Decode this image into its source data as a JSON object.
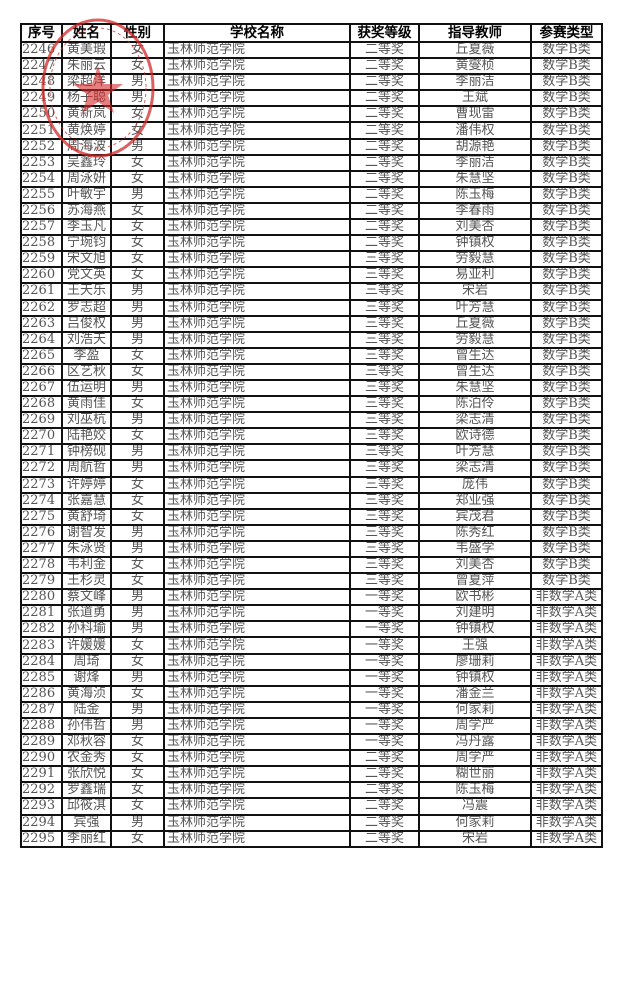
{
  "table": {
    "headers": [
      "序号",
      "姓名",
      "性别",
      "学校名称",
      "获奖等级",
      "指导教师",
      "参赛类型"
    ],
    "rows": [
      [
        "2246",
        "黄美瑕",
        "女",
        "玉林师范学院",
        "二等奖",
        "丘夏薇",
        "数学B类"
      ],
      [
        "2247",
        "朱丽云",
        "女",
        "玉林师范学院",
        "二等奖",
        "黄燮桢",
        "数学B类"
      ],
      [
        "2248",
        "梁超洋",
        "男",
        "玉林师范学院",
        "二等奖",
        "李丽洁",
        "数学B类"
      ],
      [
        "2249",
        "杨子聪",
        "男",
        "玉林师范学院",
        "二等奖",
        "王斌",
        "数学B类"
      ],
      [
        "2250",
        "黄新岚",
        "女",
        "玉林师范学院",
        "二等奖",
        "曹现雷",
        "数学B类"
      ],
      [
        "2251",
        "黄焕婷",
        "女",
        "玉林师范学院",
        "二等奖",
        "潘伟权",
        "数学B类"
      ],
      [
        "2252",
        "周海波",
        "男",
        "玉林师范学院",
        "二等奖",
        "胡源艳",
        "数学B类"
      ],
      [
        "2253",
        "吴鑫玲",
        "女",
        "玉林师范学院",
        "二等奖",
        "李丽洁",
        "数学B类"
      ],
      [
        "2254",
        "周泳妍",
        "女",
        "玉林师范学院",
        "二等奖",
        "朱慧坚",
        "数学B类"
      ],
      [
        "2255",
        "叶敏宇",
        "男",
        "玉林师范学院",
        "二等奖",
        "陈玉梅",
        "数学B类"
      ],
      [
        "2256",
        "苏海燕",
        "女",
        "玉林师范学院",
        "二等奖",
        "李春雨",
        "数学B类"
      ],
      [
        "2257",
        "李玉凡",
        "女",
        "玉林师范学院",
        "二等奖",
        "刘美杏",
        "数学B类"
      ],
      [
        "2258",
        "宁琬钧",
        "女",
        "玉林师范学院",
        "二等奖",
        "钟镇权",
        "数学B类"
      ],
      [
        "2259",
        "宋文旭",
        "女",
        "玉林师范学院",
        "三等奖",
        "劳毅慧",
        "数学B类"
      ],
      [
        "2260",
        "党文英",
        "女",
        "玉林师范学院",
        "三等奖",
        "易亚利",
        "数学B类"
      ],
      [
        "2261",
        "王天乐",
        "男",
        "玉林师范学院",
        "三等奖",
        "宋岩",
        "数学B类"
      ],
      [
        "2262",
        "罗志超",
        "男",
        "玉林师范学院",
        "三等奖",
        "叶芳慧",
        "数学B类"
      ],
      [
        "2263",
        "吕俊权",
        "男",
        "玉林师范学院",
        "三等奖",
        "丘夏薇",
        "数学B类"
      ],
      [
        "2264",
        "刘浩天",
        "男",
        "玉林师范学院",
        "三等奖",
        "劳毅慧",
        "数学B类"
      ],
      [
        "2265",
        "李盈",
        "女",
        "玉林师范学院",
        "三等奖",
        "曾生达",
        "数学B类"
      ],
      [
        "2266",
        "区艺秋",
        "女",
        "玉林师范学院",
        "三等奖",
        "曾生达",
        "数学B类"
      ],
      [
        "2267",
        "伍运明",
        "男",
        "玉林师范学院",
        "三等奖",
        "朱慧坚",
        "数学B类"
      ],
      [
        "2268",
        "黄雨佳",
        "女",
        "玉林师范学院",
        "三等奖",
        "陈泊伶",
        "数学B类"
      ],
      [
        "2269",
        "刘巫杭",
        "男",
        "玉林师范学院",
        "三等奖",
        "梁志清",
        "数学B类"
      ],
      [
        "2270",
        "陆艳姣",
        "女",
        "玉林师范学院",
        "三等奖",
        "欧诗德",
        "数学B类"
      ],
      [
        "2271",
        "钟榜砚",
        "男",
        "玉林师范学院",
        "三等奖",
        "叶芳慧",
        "数学B类"
      ],
      [
        "2272",
        "周航哲",
        "男",
        "玉林师范学院",
        "三等奖",
        "梁志清",
        "数学B类"
      ],
      [
        "2273",
        "许婷婷",
        "女",
        "玉林师范学院",
        "三等奖",
        "庞伟",
        "数学B类"
      ],
      [
        "2274",
        "张嘉慧",
        "女",
        "玉林师范学院",
        "三等奖",
        "郑业强",
        "数学B类"
      ],
      [
        "2275",
        "黄舒琦",
        "女",
        "玉林师范学院",
        "三等奖",
        "宾茂君",
        "数学B类"
      ],
      [
        "2276",
        "谢智发",
        "男",
        "玉林师范学院",
        "三等奖",
        "陈秀红",
        "数学B类"
      ],
      [
        "2277",
        "朱泳贤",
        "男",
        "玉林师范学院",
        "三等奖",
        "韦盛学",
        "数学B类"
      ],
      [
        "2278",
        "韦利金",
        "女",
        "玉林师范学院",
        "三等奖",
        "刘美杏",
        "数学B类"
      ],
      [
        "2279",
        "王杉灵",
        "女",
        "玉林师范学院",
        "三等奖",
        "曾夏萍",
        "数学B类"
      ],
      [
        "2280",
        "蔡文峰",
        "男",
        "玉林师范学院",
        "一等奖",
        "欧书彬",
        "非数学A类"
      ],
      [
        "2281",
        "张道勇",
        "男",
        "玉林师范学院",
        "一等奖",
        "刘建明",
        "非数学A类"
      ],
      [
        "2282",
        "孙科瑜",
        "男",
        "玉林师范学院",
        "一等奖",
        "钟镇权",
        "非数学A类"
      ],
      [
        "2283",
        "许媛媛",
        "女",
        "玉林师范学院",
        "一等奖",
        "王强",
        "非数学A类"
      ],
      [
        "2284",
        "周琦",
        "女",
        "玉林师范学院",
        "一等奖",
        "廖珊莉",
        "非数学A类"
      ],
      [
        "2285",
        "谢烽",
        "男",
        "玉林师范学院",
        "一等奖",
        "钟镇权",
        "非数学A类"
      ],
      [
        "2286",
        "黄海浈",
        "女",
        "玉林师范学院",
        "一等奖",
        "潘金兰",
        "非数学A类"
      ],
      [
        "2287",
        "陆金",
        "男",
        "玉林师范学院",
        "一等奖",
        "何家莉",
        "非数学A类"
      ],
      [
        "2288",
        "孙伟哲",
        "男",
        "玉林师范学院",
        "一等奖",
        "周学严",
        "非数学A类"
      ],
      [
        "2289",
        "邓秋容",
        "女",
        "玉林师范学院",
        "一等奖",
        "冯丹露",
        "非数学A类"
      ],
      [
        "2290",
        "农金秀",
        "女",
        "玉林师范学院",
        "二等奖",
        "周学严",
        "非数学A类"
      ],
      [
        "2291",
        "张欣悦",
        "女",
        "玉林师范学院",
        "二等奖",
        "糊世丽",
        "非数学A类"
      ],
      [
        "2292",
        "罗鑫瑞",
        "女",
        "玉林师范学院",
        "二等奖",
        "陈玉梅",
        "非数学A类"
      ],
      [
        "2293",
        "邱筱淇",
        "女",
        "玉林师范学院",
        "二等奖",
        "冯震",
        "非数学A类"
      ],
      [
        "2294",
        "宾强",
        "男",
        "玉林师范学院",
        "二等奖",
        "何家莉",
        "非数学A类"
      ],
      [
        "2295",
        "李丽红",
        "女",
        "玉林师范学院",
        "二等奖",
        "宋岩",
        "非数学A类"
      ]
    ]
  },
  "seal": {
    "color": "#d42a2a",
    "icon": "official-seal"
  }
}
